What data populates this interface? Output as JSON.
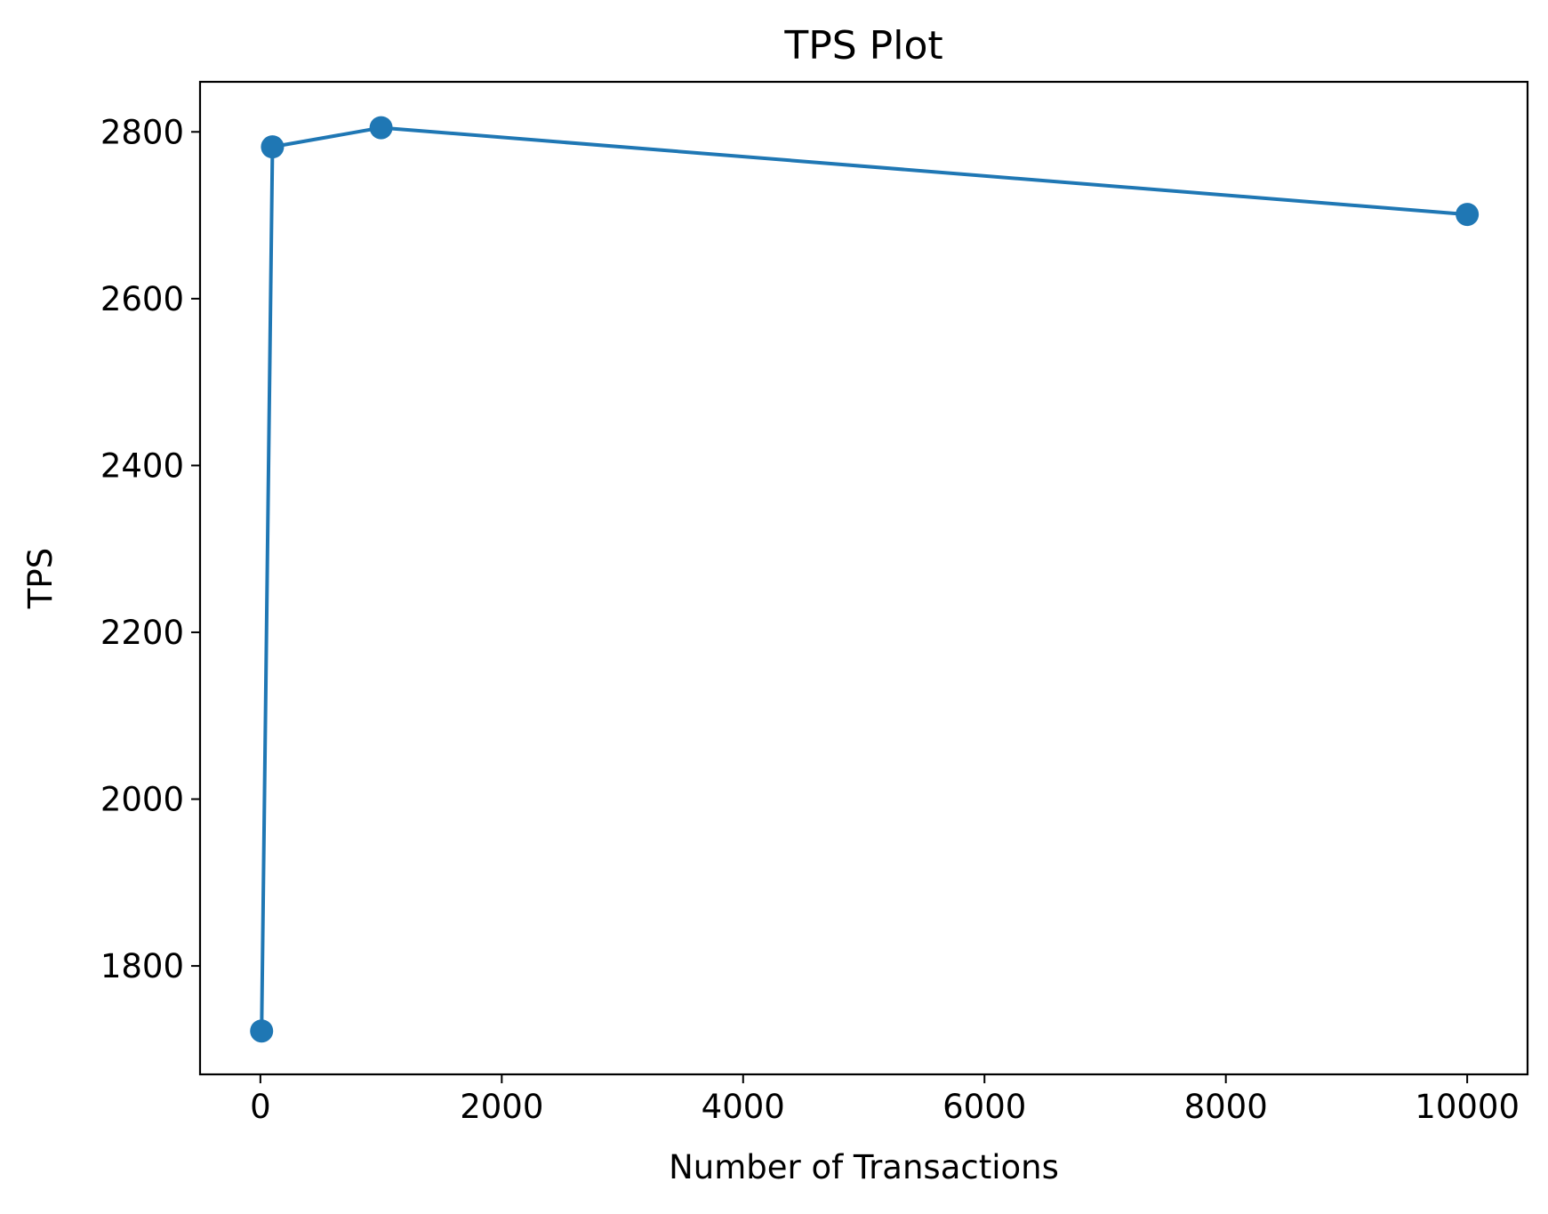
{
  "chart_data": {
    "type": "line",
    "title": "TPS Plot",
    "xlabel": "Number of Transactions",
    "ylabel": "TPS",
    "xlim": [
      -500,
      10500
    ],
    "ylim": [
      1670,
      2860
    ],
    "x_ticks": [
      0,
      2000,
      4000,
      6000,
      8000,
      10000
    ],
    "y_ticks": [
      1800,
      2000,
      2200,
      2400,
      2600,
      2800
    ],
    "grid": false,
    "legend": "none",
    "series": [
      {
        "color": "#1f77b4",
        "marker": "circle",
        "points": [
          {
            "x": 10,
            "y": 1722
          },
          {
            "x": 100,
            "y": 2782
          },
          {
            "x": 1000,
            "y": 2805
          },
          {
            "x": 10000,
            "y": 2701
          }
        ]
      }
    ]
  }
}
